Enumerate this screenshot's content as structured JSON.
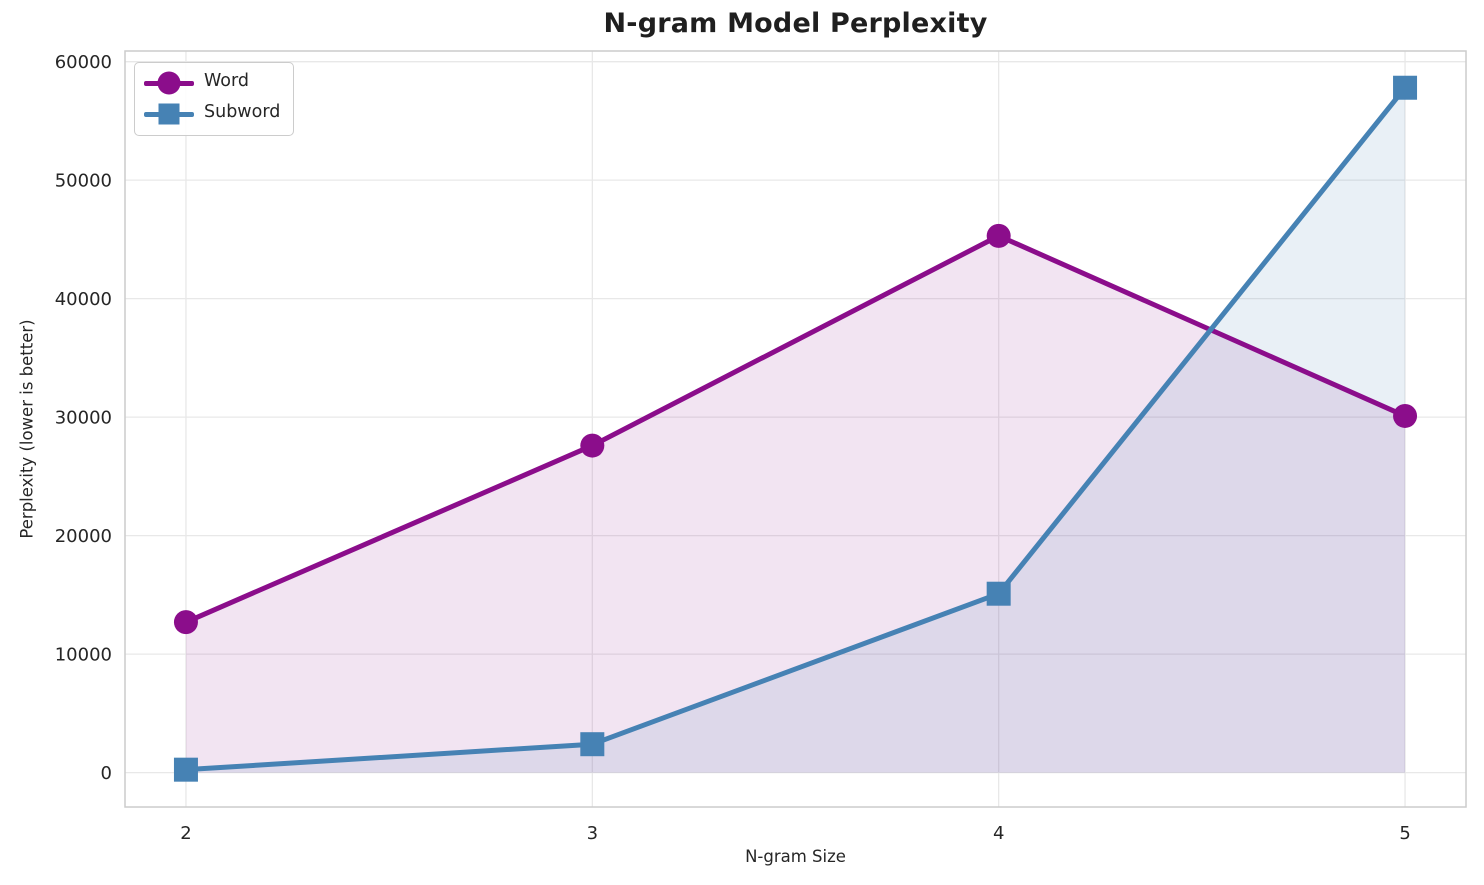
{
  "chart_data": {
    "type": "line",
    "title": "N-gram Model Perplexity",
    "xlabel": "N-gram Size",
    "ylabel": "Perplexity (lower is better)",
    "x": [
      2,
      3,
      4,
      5
    ],
    "series": [
      {
        "name": "Word",
        "marker": "circle",
        "color": "#8b0d8b",
        "fill_alpha": 0.11,
        "values": [
          12700,
          27600,
          45300,
          30100
        ]
      },
      {
        "name": "Subword",
        "marker": "square",
        "color": "#4682b4",
        "fill_alpha": 0.12,
        "values": [
          250,
          2400,
          15100,
          57800
        ]
      }
    ],
    "xticks": [
      2,
      3,
      4,
      5
    ],
    "yticks": [
      0,
      10000,
      20000,
      30000,
      40000,
      50000,
      60000
    ],
    "xlim": [
      1.85,
      5.15
    ],
    "ylim": [
      -2900,
      60900
    ],
    "fill_to_zero": true,
    "grid": true,
    "legend_position": "upper left",
    "style": {
      "grid_color": "#e8e8e8",
      "spine_color": "#cccccc",
      "tick_color": "#262626",
      "title_color": "#1f1f1f",
      "background": "#ffffff",
      "line_width": 5,
      "marker_size": 24
    }
  }
}
